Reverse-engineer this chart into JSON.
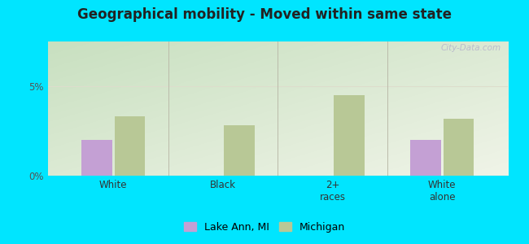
{
  "title": "Geographical mobility - Moved within same state",
  "categories": [
    "White",
    "Black",
    "2+\nraces",
    "White\nalone"
  ],
  "lake_ann_values": [
    2.0,
    0.0,
    0.0,
    2.0
  ],
  "michigan_values": [
    3.3,
    2.8,
    4.5,
    3.2
  ],
  "ylim": [
    0,
    7.5
  ],
  "yticks": [
    0,
    5
  ],
  "ytick_labels": [
    "0%",
    "5%"
  ],
  "bar_width": 0.28,
  "lake_ann_color": "#c4a0d4",
  "michigan_color": "#b8c896",
  "bg_outer": "#00e5ff",
  "bg_plot_tl": "#c8e0c0",
  "bg_plot_br": "#f0f4e8",
  "title_fontsize": 12,
  "legend_lake_ann": "Lake Ann, MI",
  "legend_michigan": "Michigan",
  "watermark": "City-Data.com"
}
